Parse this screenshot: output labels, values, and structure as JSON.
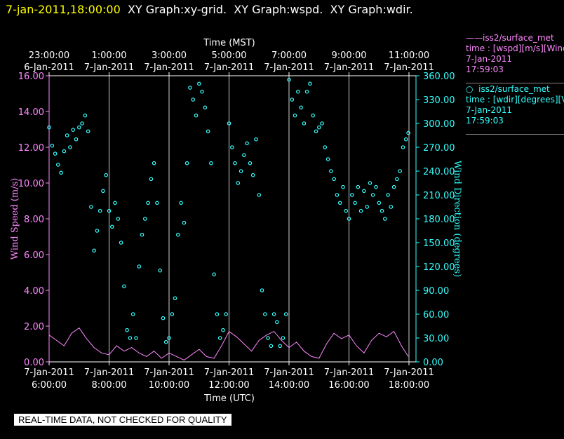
{
  "header": {
    "date": "7-jan-2011,18:00:00",
    "titles": [
      "XY Graph:xy-grid.",
      "XY Graph:wspd.",
      "XY Graph:wdir."
    ]
  },
  "legend": {
    "series1": {
      "name": "iss2/surface_met",
      "desc": "time : [wspd][m/s][Wind",
      "date": "7-Jan-2011",
      "time": "17:59:03",
      "color": "#ff88ff"
    },
    "series2": {
      "name": "iss2/surface_met",
      "desc": "time : [wdir][degrees][V",
      "date": "7-Jan-2011",
      "time": "17:59:03",
      "color": "#33ffff"
    }
  },
  "banner": "REAL-TIME DATA, NOT CHECKED FOR QUALITY",
  "chart_data": {
    "type": "line",
    "top_axis": {
      "label": "Time (MST)",
      "ticks": [
        {
          "time": "23:00:00",
          "date": "6-Jan-2011"
        },
        {
          "time": "1:00:00",
          "date": "7-Jan-2011"
        },
        {
          "time": "3:00:00",
          "date": "7-Jan-2011"
        },
        {
          "time": "5:00:00",
          "date": "7-Jan-2011"
        },
        {
          "time": "7:00:00",
          "date": "7-Jan-2011"
        },
        {
          "time": "9:00:00",
          "date": "7-Jan-2011"
        },
        {
          "time": "11:00:00",
          "date": "7-Jan-2011"
        }
      ]
    },
    "bottom_axis": {
      "label": "Time (UTC)",
      "ticks": [
        {
          "date": "7-Jan-2011",
          "time": "6:00:00"
        },
        {
          "date": "7-Jan-2011",
          "time": "8:00:00"
        },
        {
          "date": "7-Jan-2011",
          "time": "10:00:00"
        },
        {
          "date": "7-Jan-2011",
          "time": "12:00:00"
        },
        {
          "date": "7-Jan-2011",
          "time": "14:00:00"
        },
        {
          "date": "7-Jan-2011",
          "time": "16:00:00"
        },
        {
          "date": "7-Jan-2011",
          "time": "18:00:00"
        }
      ],
      "range_hours_utc": [
        6,
        18
      ]
    },
    "left_axis": {
      "label": "Wind Speed (m/s)",
      "ylim": [
        0,
        16
      ],
      "ticks": [
        "0.00",
        "2.00",
        "4.00",
        "6.00",
        "8.00",
        "10.00",
        "12.00",
        "14.00",
        "16.00"
      ]
    },
    "right_axis": {
      "label": "Wind Direction (degrees)",
      "ylim": [
        0,
        360
      ],
      "ticks": [
        "0.00",
        "30.00",
        "60.00",
        "90.00",
        "120.00",
        "150.00",
        "180.00",
        "210.00",
        "240.00",
        "270.00",
        "300.00",
        "330.00",
        "360.00"
      ]
    },
    "grid": "vertical",
    "series": [
      {
        "name": "iss2/surface_met",
        "quantity": "wspd",
        "style": "line",
        "color": "#ff88ff",
        "x": [
          6.0,
          6.25,
          6.5,
          6.75,
          7.0,
          7.25,
          7.5,
          7.75,
          8.0,
          8.25,
          8.5,
          8.75,
          9.0,
          9.25,
          9.5,
          9.75,
          10.0,
          10.25,
          10.5,
          10.75,
          11.0,
          11.25,
          11.5,
          11.75,
          12.0,
          12.25,
          12.5,
          12.75,
          13.0,
          13.25,
          13.5,
          13.75,
          14.0,
          14.25,
          14.5,
          14.75,
          15.0,
          15.25,
          15.5,
          15.75,
          16.0,
          16.25,
          16.5,
          16.75,
          17.0,
          17.25,
          17.5,
          17.75,
          17.98
        ],
        "y": [
          1.5,
          1.2,
          0.9,
          1.6,
          1.9,
          1.3,
          0.8,
          0.5,
          0.4,
          0.9,
          0.6,
          0.8,
          0.5,
          0.3,
          0.6,
          0.2,
          0.5,
          0.3,
          0.1,
          0.4,
          0.7,
          0.3,
          0.2,
          0.9,
          1.7,
          1.4,
          1.0,
          0.6,
          1.2,
          1.5,
          1.7,
          1.2,
          0.8,
          1.1,
          0.6,
          0.3,
          0.2,
          1.0,
          1.6,
          1.3,
          1.5,
          0.9,
          0.5,
          1.2,
          1.6,
          1.4,
          1.7,
          0.9,
          0.3
        ]
      },
      {
        "name": "iss2/surface_met",
        "quantity": "wdir",
        "style": "scatter",
        "color": "#33ffff",
        "x": [
          6.0,
          6.1,
          6.2,
          6.3,
          6.4,
          6.5,
          6.6,
          6.7,
          6.8,
          6.9,
          7.0,
          7.1,
          7.2,
          7.3,
          7.4,
          7.5,
          7.6,
          7.7,
          7.8,
          7.9,
          8.0,
          8.1,
          8.2,
          8.3,
          8.4,
          8.5,
          8.6,
          8.7,
          8.8,
          8.9,
          9.0,
          9.1,
          9.2,
          9.3,
          9.4,
          9.5,
          9.6,
          9.7,
          9.8,
          9.9,
          10.0,
          10.1,
          10.2,
          10.3,
          10.4,
          10.5,
          10.6,
          10.7,
          10.8,
          10.9,
          11.0,
          11.1,
          11.2,
          11.3,
          11.4,
          11.5,
          11.6,
          11.7,
          11.8,
          11.9,
          12.0,
          12.1,
          12.2,
          12.3,
          12.4,
          12.5,
          12.6,
          12.7,
          12.8,
          12.9,
          13.0,
          13.1,
          13.2,
          13.3,
          13.4,
          13.5,
          13.6,
          13.7,
          13.8,
          13.9,
          14.0,
          14.1,
          14.2,
          14.3,
          14.4,
          14.5,
          14.6,
          14.7,
          14.8,
          14.9,
          15.0,
          15.1,
          15.2,
          15.3,
          15.4,
          15.5,
          15.6,
          15.7,
          15.8,
          15.9,
          16.0,
          16.1,
          16.2,
          16.3,
          16.4,
          16.5,
          16.6,
          16.7,
          16.8,
          16.9,
          17.0,
          17.1,
          17.2,
          17.3,
          17.4,
          17.5,
          17.6,
          17.7,
          17.8,
          17.9,
          17.98
        ],
        "y": [
          295,
          272,
          262,
          248,
          238,
          265,
          285,
          270,
          292,
          280,
          295,
          300,
          310,
          290,
          195,
          140,
          165,
          190,
          215,
          235,
          190,
          170,
          200,
          180,
          150,
          95,
          40,
          30,
          60,
          30,
          120,
          160,
          180,
          200,
          230,
          250,
          200,
          115,
          55,
          25,
          30,
          60,
          80,
          160,
          200,
          175,
          250,
          345,
          330,
          310,
          350,
          340,
          320,
          290,
          250,
          110,
          60,
          30,
          40,
          60,
          300,
          270,
          250,
          225,
          240,
          260,
          275,
          250,
          235,
          280,
          210,
          90,
          60,
          30,
          20,
          60,
          50,
          20,
          30,
          60,
          355,
          330,
          310,
          340,
          320,
          300,
          340,
          350,
          310,
          290,
          295,
          300,
          270,
          255,
          240,
          230,
          210,
          200,
          220,
          190,
          180,
          210,
          200,
          220,
          190,
          215,
          195,
          225,
          210,
          220,
          200,
          190,
          180,
          210,
          195,
          220,
          230,
          240,
          270,
          280,
          288
        ]
      }
    ]
  }
}
